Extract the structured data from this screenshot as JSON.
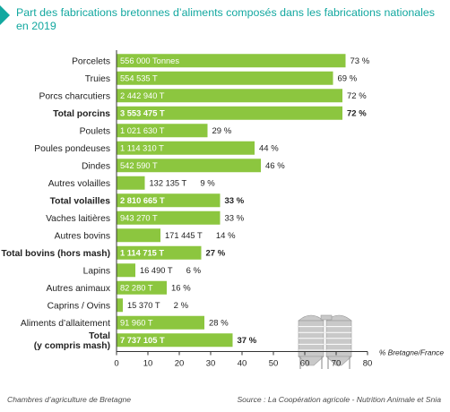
{
  "title": "Part des fabrications bretonnes d’aliments composés dans les fabrications nationales en 2019",
  "footer_left": "Chambres d’agriculture de Bretagne",
  "footer_right": "Source : La Coopération agricole - Nutrition Animale et Snia",
  "colors": {
    "bar": "#8cc63f",
    "title": "#13a8a0",
    "text": "#222222"
  },
  "chart_data": {
    "type": "bar",
    "orientation": "horizontal",
    "xlabel": "% Bretagne/France",
    "xlim": [
      0,
      80
    ],
    "xticks": [
      0,
      10,
      20,
      30,
      40,
      50,
      60,
      70,
      80
    ],
    "grid": false,
    "rows": [
      {
        "label": "Porcelets",
        "value": 73,
        "tonnage": "556 000 Tonnes",
        "pct_label": "73 %",
        "bold": false
      },
      {
        "label": "Truies",
        "value": 69,
        "tonnage": "554 535 T",
        "pct_label": "69 %",
        "bold": false
      },
      {
        "label": "Porcs charcutiers",
        "value": 72,
        "tonnage": "2 442 940 T",
        "pct_label": "72 %",
        "bold": false
      },
      {
        "label": "Total porcins",
        "value": 72,
        "tonnage": "3 553 475 T",
        "pct_label": "72 %",
        "bold": true
      },
      {
        "label": "Poulets",
        "value": 29,
        "tonnage": "1 021 630 T",
        "pct_label": "29 %",
        "bold": false
      },
      {
        "label": "Poules pondeuses",
        "value": 44,
        "tonnage": "1 114 310 T",
        "pct_label": "44 %",
        "bold": false
      },
      {
        "label": "Dindes",
        "value": 46,
        "tonnage": "542 590 T",
        "pct_label": "46 %",
        "bold": false
      },
      {
        "label": "Autres volailles",
        "value": 9,
        "tonnage": "132 135 T",
        "pct_label": "9 %",
        "bold": false
      },
      {
        "label": "Total volailles",
        "value": 33,
        "tonnage": "2 810 665 T",
        "pct_label": "33 %",
        "bold": true
      },
      {
        "label": "Vaches laitières",
        "value": 33,
        "tonnage": "943 270 T",
        "pct_label": "33 %",
        "bold": false
      },
      {
        "label": "Autres bovins",
        "value": 14,
        "tonnage": "171 445 T",
        "pct_label": "14 %",
        "bold": false
      },
      {
        "label": "Total bovins (hors mash)",
        "value": 27,
        "tonnage": "1 114 715 T",
        "pct_label": "27 %",
        "bold": true
      },
      {
        "label": "Lapins",
        "value": 6,
        "tonnage": "16 490 T",
        "pct_label": "6 %",
        "bold": false
      },
      {
        "label": "Autres animaux",
        "value": 16,
        "tonnage": "82 280 T",
        "pct_label": "16 %",
        "bold": false
      },
      {
        "label": "Caprins / Ovins",
        "value": 2,
        "tonnage": "15 370 T",
        "pct_label": "2 %",
        "bold": false
      },
      {
        "label": "Aliments d’allaitement",
        "value": 28,
        "tonnage": "91 960 T",
        "pct_label": "28 %",
        "bold": false
      },
      {
        "label": "Total\n(y compris mash)",
        "value": 37,
        "tonnage": "7 737 105 T",
        "pct_label": "37 %",
        "bold": true
      }
    ]
  }
}
